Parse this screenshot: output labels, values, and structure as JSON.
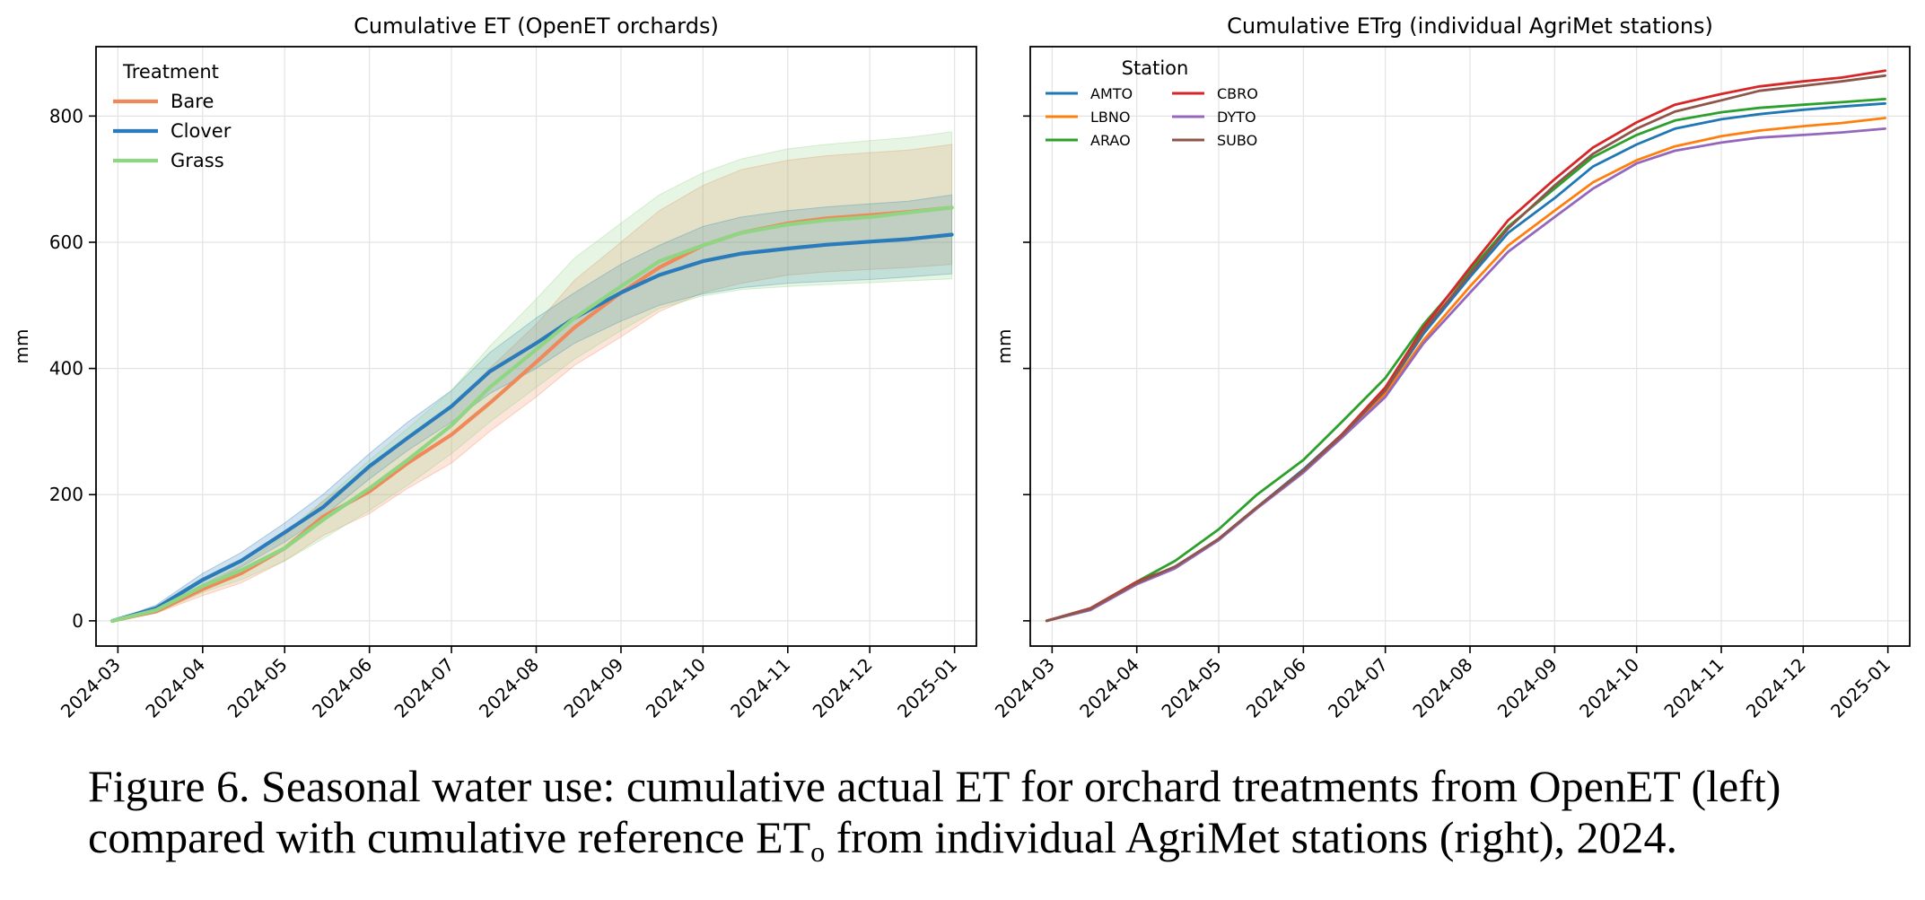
{
  "caption": {
    "line1": "Figure 6. Seasonal water use: cumulative actual ET for orchard treatments from OpenET (left)",
    "line2_before": "compared with cumulative reference ET",
    "line2_sub": "o",
    "line2_after": " from individual AgriMet stations (right), 2024."
  },
  "chart_data": [
    {
      "type": "line",
      "title": "Cumulative ET (OpenET orchards)",
      "xlabel": "",
      "ylabel": "mm",
      "x_axis": "date",
      "xlim": [
        "2024-02-22",
        "2025-01-09"
      ],
      "ylim": [
        -40,
        910
      ],
      "x_ticks": [
        "2024-03",
        "2024-04",
        "2024-05",
        "2024-06",
        "2024-07",
        "2024-08",
        "2024-09",
        "2024-10",
        "2024-11",
        "2024-12",
        "2025-01"
      ],
      "y_ticks": [
        0,
        200,
        400,
        600,
        800
      ],
      "grid": true,
      "legend": {
        "title": "Treatment",
        "placement": "top-left",
        "columns": 1
      },
      "shaded_band": "range across orchards",
      "x": [
        "2024-02-28",
        "2024-03-15",
        "2024-04-01",
        "2024-04-15",
        "2024-05-01",
        "2024-05-15",
        "2024-06-01",
        "2024-06-15",
        "2024-07-01",
        "2024-07-15",
        "2024-08-01",
        "2024-08-15",
        "2024-09-01",
        "2024-09-15",
        "2024-10-01",
        "2024-10-15",
        "2024-11-01",
        "2024-11-15",
        "2024-12-01",
        "2024-12-15",
        "2024-12-31"
      ],
      "series": [
        {
          "name": "Bare",
          "color": "#f0895a",
          "values": [
            0,
            15,
            50,
            75,
            115,
            165,
            205,
            250,
            295,
            345,
            410,
            465,
            520,
            560,
            595,
            615,
            630,
            638,
            643,
            648,
            655
          ],
          "lower": [
            0,
            12,
            40,
            60,
            95,
            135,
            170,
            210,
            250,
            300,
            355,
            405,
            450,
            490,
            520,
            535,
            548,
            553,
            557,
            560,
            565
          ],
          "upper": [
            0,
            18,
            58,
            88,
            135,
            190,
            240,
            290,
            340,
            400,
            470,
            540,
            600,
            650,
            690,
            715,
            730,
            737,
            742,
            746,
            755
          ]
        },
        {
          "name": "Clover",
          "color": "#2b7bba",
          "values": [
            0,
            20,
            65,
            95,
            140,
            180,
            245,
            290,
            340,
            395,
            440,
            480,
            520,
            548,
            570,
            582,
            590,
            596,
            601,
            605,
            612
          ],
          "lower": [
            0,
            15,
            55,
            85,
            125,
            165,
            225,
            270,
            315,
            360,
            400,
            440,
            475,
            500,
            518,
            528,
            535,
            538,
            541,
            545,
            550
          ],
          "upper": [
            0,
            25,
            75,
            108,
            155,
            200,
            265,
            315,
            365,
            425,
            480,
            520,
            565,
            595,
            625,
            640,
            650,
            656,
            661,
            665,
            675
          ]
        },
        {
          "name": "Grass",
          "color": "#90d583",
          "values": [
            0,
            17,
            55,
            80,
            115,
            160,
            210,
            255,
            310,
            370,
            430,
            480,
            530,
            570,
            595,
            615,
            628,
            635,
            640,
            647,
            655
          ],
          "lower": [
            0,
            12,
            45,
            65,
            95,
            130,
            175,
            215,
            265,
            315,
            370,
            415,
            460,
            495,
            515,
            525,
            530,
            533,
            536,
            539,
            542
          ],
          "upper": [
            0,
            23,
            68,
            98,
            140,
            190,
            255,
            305,
            365,
            435,
            510,
            575,
            630,
            675,
            710,
            732,
            748,
            755,
            761,
            766,
            775
          ]
        }
      ]
    },
    {
      "type": "line",
      "title": "Cumulative ETrg (individual AgriMet stations)",
      "xlabel": "",
      "ylabel": "mm",
      "x_axis": "date",
      "xlim": [
        "2024-02-22",
        "2025-01-09"
      ],
      "ylim": [
        -40,
        910
      ],
      "x_ticks": [
        "2024-03",
        "2024-04",
        "2024-05",
        "2024-06",
        "2024-07",
        "2024-08",
        "2024-09",
        "2024-10",
        "2024-11",
        "2024-12",
        "2025-01"
      ],
      "y_ticks": [
        0,
        200,
        400,
        600,
        800
      ],
      "y_ticklabels_shown": false,
      "grid": true,
      "legend": {
        "title": "Station",
        "placement": "top-left",
        "columns": 2
      },
      "x": [
        "2024-02-28",
        "2024-03-15",
        "2024-04-01",
        "2024-04-15",
        "2024-05-01",
        "2024-05-15",
        "2024-06-01",
        "2024-06-15",
        "2024-07-01",
        "2024-07-15",
        "2024-08-01",
        "2024-08-15",
        "2024-09-01",
        "2024-09-15",
        "2024-10-01",
        "2024-10-15",
        "2024-11-01",
        "2024-11-15",
        "2024-12-01",
        "2024-12-15",
        "2024-12-31"
      ],
      "series": [
        {
          "name": "AMTO",
          "color": "#1f77b4",
          "values": [
            0,
            18,
            60,
            85,
            130,
            180,
            240,
            295,
            365,
            455,
            545,
            615,
            670,
            720,
            755,
            780,
            795,
            803,
            810,
            815,
            820
          ]
        },
        {
          "name": "LBNO",
          "color": "#ff7f0e",
          "values": [
            0,
            18,
            60,
            85,
            130,
            180,
            238,
            290,
            360,
            445,
            530,
            595,
            650,
            695,
            730,
            752,
            768,
            777,
            784,
            789,
            797
          ]
        },
        {
          "name": "ARAO",
          "color": "#2ca02c",
          "values": [
            0,
            19,
            62,
            95,
            145,
            200,
            255,
            315,
            385,
            470,
            555,
            625,
            685,
            735,
            770,
            793,
            806,
            813,
            818,
            822,
            827
          ]
        },
        {
          "name": "CBRO",
          "color": "#d62728",
          "values": [
            0,
            20,
            62,
            85,
            130,
            180,
            238,
            295,
            370,
            465,
            560,
            635,
            700,
            750,
            790,
            818,
            835,
            847,
            855,
            861,
            872
          ]
        },
        {
          "name": "DYTO",
          "color": "#9467bd",
          "values": [
            0,
            17,
            58,
            83,
            128,
            178,
            235,
            290,
            355,
            440,
            520,
            585,
            640,
            685,
            725,
            745,
            758,
            766,
            770,
            774,
            780
          ]
        },
        {
          "name": "SUBO",
          "color": "#8c564b",
          "values": [
            0,
            19,
            60,
            86,
            130,
            180,
            238,
            293,
            365,
            460,
            550,
            622,
            690,
            740,
            780,
            807,
            825,
            840,
            848,
            855,
            864
          ]
        }
      ]
    }
  ]
}
